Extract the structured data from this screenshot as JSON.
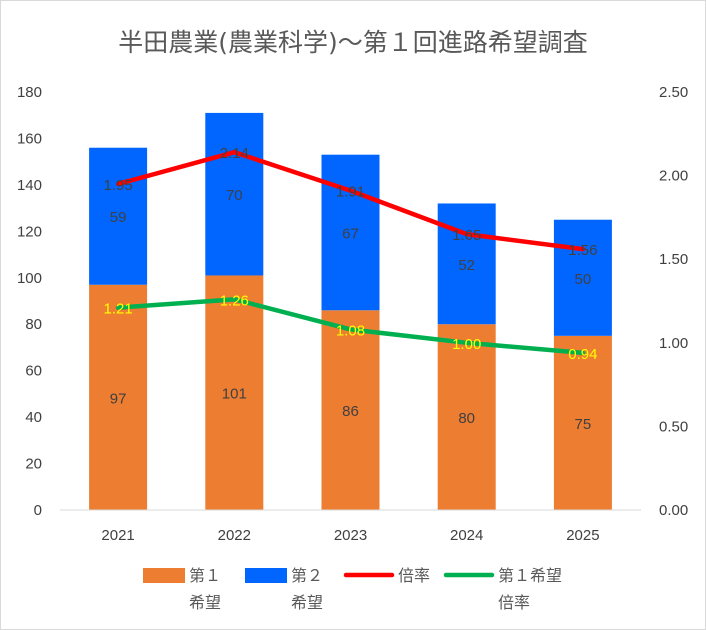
{
  "chart_data": {
    "type": "bar",
    "title": "半田農業(農業科学)～第１回進路希望調査",
    "categories": [
      "2021",
      "2022",
      "2023",
      "2024",
      "2025"
    ],
    "series": [
      {
        "name": "第１希望",
        "legend_lines": [
          "第１",
          "希望"
        ],
        "kind": "bar",
        "axis": "left",
        "color": "#ed7d31",
        "values": [
          97,
          101,
          86,
          80,
          75
        ]
      },
      {
        "name": "第２希望",
        "legend_lines": [
          "第２",
          "希望"
        ],
        "kind": "bar",
        "axis": "left",
        "color": "#0066ff",
        "values": [
          59,
          70,
          67,
          52,
          50
        ]
      },
      {
        "name": "倍率",
        "legend_lines": [
          "倍率"
        ],
        "kind": "line",
        "axis": "right",
        "color": "#ff0000",
        "values": [
          1.95,
          2.14,
          1.91,
          1.65,
          1.56
        ],
        "labels": [
          "1.95",
          "2.14",
          "1.91",
          "1.65",
          "1.56"
        ]
      },
      {
        "name": "第１希望倍率",
        "legend_lines": [
          "第１希望",
          "倍率"
        ],
        "kind": "line",
        "axis": "right",
        "color": "#00b050",
        "values": [
          1.21,
          1.26,
          1.08,
          1.0,
          0.94
        ],
        "labels": [
          "1.21",
          "1.26",
          "1.08",
          "1.00",
          "0.94"
        ]
      }
    ],
    "y_left": {
      "min": 0,
      "max": 180,
      "step": 20,
      "ticks": [
        "0",
        "20",
        "40",
        "60",
        "80",
        "100",
        "120",
        "140",
        "160",
        "180"
      ]
    },
    "y_right": {
      "min": 0,
      "max": 2.5,
      "step": 0.5,
      "ticks": [
        "0.00",
        "0.50",
        "1.00",
        "1.50",
        "2.00",
        "2.50"
      ]
    },
    "grid": false,
    "legend_position": "bottom"
  }
}
